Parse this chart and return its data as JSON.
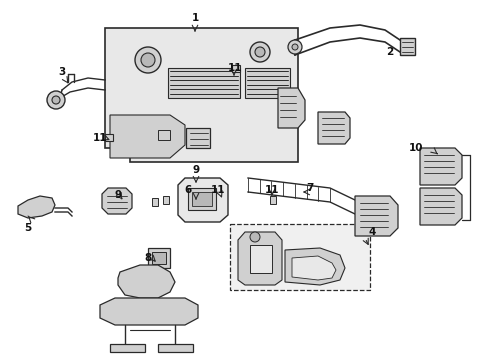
{
  "background_color": "#ffffff",
  "line_color": "#2a2a2a",
  "fill_light": "#e8e8e8",
  "fill_mid": "#d0d0d0",
  "fill_dark": "#b8b8b8",
  "figsize": [
    4.89,
    3.6
  ],
  "dpi": 100,
  "callouts": [
    [
      "1",
      195,
      18
    ],
    [
      "2",
      390,
      52
    ],
    [
      "3",
      62,
      72
    ],
    [
      "4",
      370,
      232
    ],
    [
      "5",
      28,
      228
    ],
    [
      "6",
      188,
      192
    ],
    [
      "7",
      310,
      190
    ],
    [
      "8",
      148,
      258
    ],
    [
      "9",
      196,
      170
    ],
    [
      "9",
      118,
      195
    ],
    [
      "10",
      418,
      148
    ],
    [
      "11",
      235,
      68
    ],
    [
      "11",
      103,
      138
    ],
    [
      "11",
      218,
      192
    ],
    [
      "11",
      275,
      192
    ]
  ]
}
